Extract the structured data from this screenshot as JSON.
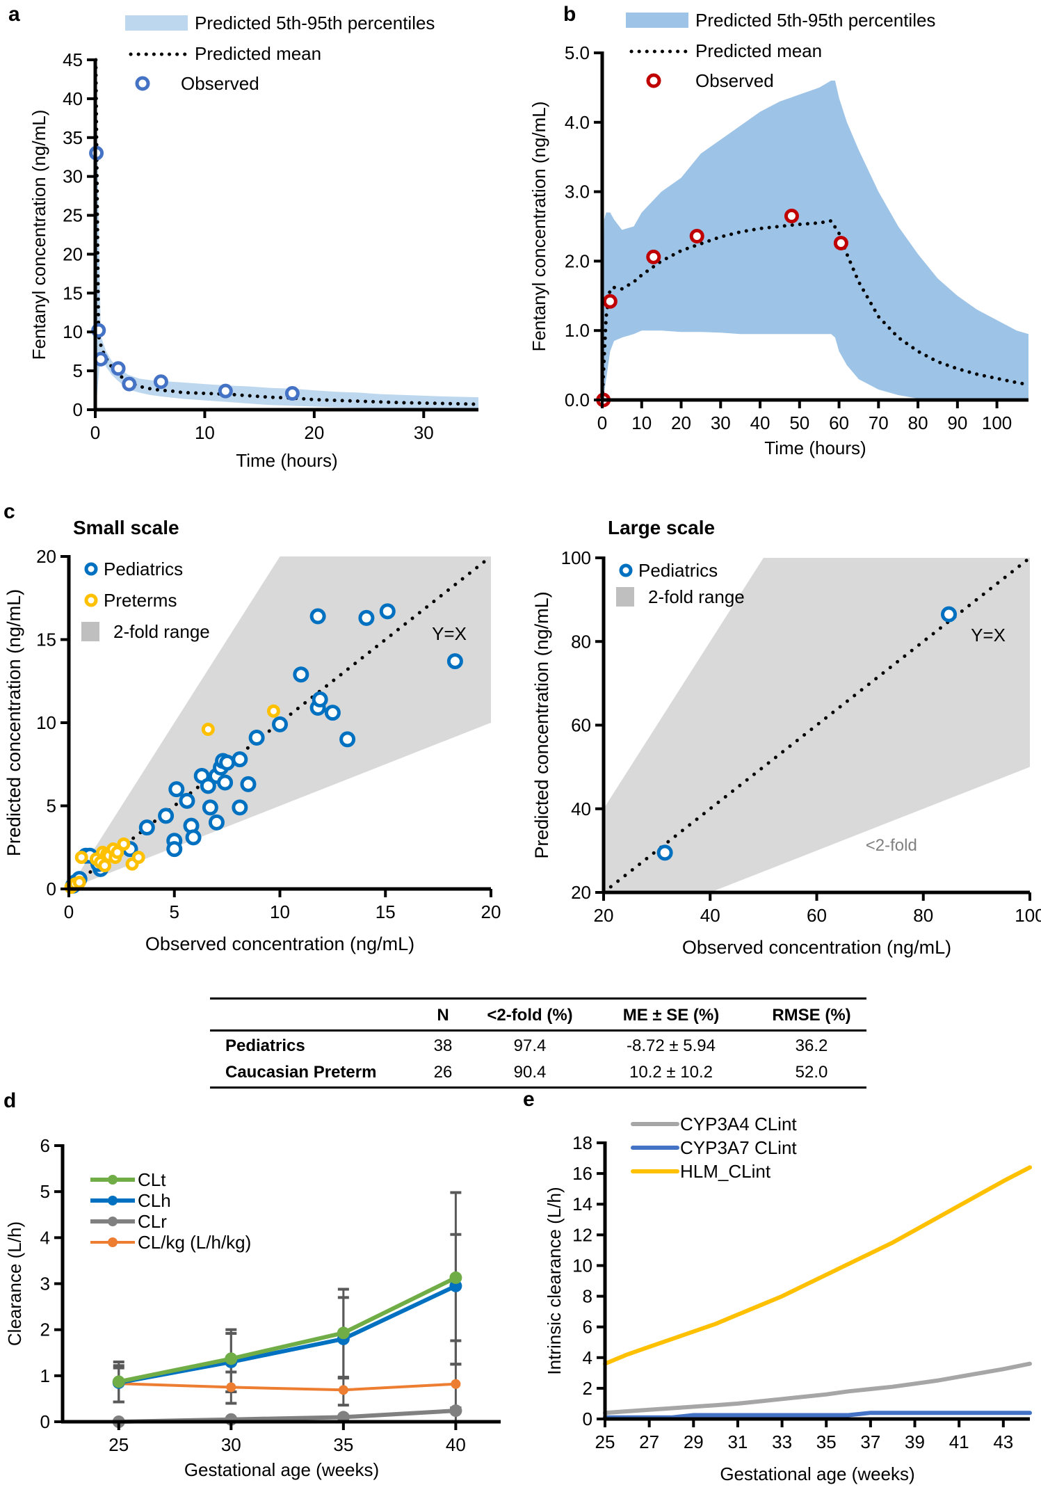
{
  "panel_labels": {
    "a": "a",
    "b": "b",
    "c": "c",
    "d": "d",
    "e": "e"
  },
  "chart_data": [
    {
      "id": "a",
      "type": "line",
      "title": "",
      "xlabel": "Time  (hours)",
      "ylabel": "Fentanyl concentration (ng/mL)",
      "xlim": [
        0,
        35
      ],
      "ylim": [
        0,
        45
      ],
      "xticks": [
        0,
        10,
        20,
        30
      ],
      "yticks": [
        0,
        5,
        10,
        15,
        20,
        25,
        30,
        35,
        40,
        45
      ],
      "legend": [
        "Predicted 5th-95th percentiles",
        "Predicted mean",
        "Observed"
      ],
      "legend_position": "top",
      "colors": {
        "band": "#bdd7ee",
        "mean": "#000000",
        "observed": "#4472c4"
      },
      "band": {
        "x": [
          0.05,
          0.5,
          1,
          1.5,
          2,
          3,
          4,
          5,
          6,
          8,
          10,
          12,
          14,
          16,
          18,
          20,
          22,
          24,
          26,
          28,
          30,
          32,
          35
        ],
        "lower": [
          0,
          7.5,
          5.5,
          4.5,
          3.8,
          2.6,
          2.2,
          1.9,
          1.7,
          1.4,
          1.2,
          1.0,
          0.8,
          0.6,
          0.5,
          0.4,
          0.3,
          0.25,
          0.2,
          0.15,
          0.1,
          0.1,
          0.05
        ],
        "upper": [
          45,
          9.5,
          7.5,
          6.3,
          5.5,
          4.5,
          4.0,
          3.8,
          3.7,
          3.5,
          3.3,
          3.1,
          3.0,
          2.8,
          2.7,
          2.5,
          2.3,
          2.2,
          2.0,
          1.9,
          1.8,
          1.7,
          1.6
        ]
      },
      "mean": {
        "x": [
          0.05,
          0.3,
          0.6,
          1,
          1.5,
          2,
          2.5,
          3,
          4,
          5,
          6,
          7,
          8,
          10,
          12,
          14,
          16,
          18,
          20,
          22,
          24,
          26,
          28,
          30,
          32,
          35
        ],
        "y": [
          45,
          9.5,
          7.8,
          6.6,
          5.5,
          4.7,
          4.1,
          3.6,
          3.0,
          2.7,
          2.5,
          2.4,
          2.2,
          2.1,
          2.0,
          1.8,
          1.6,
          1.5,
          1.3,
          1.2,
          1.1,
          1.0,
          0.9,
          0.85,
          0.8,
          0.7
        ]
      },
      "observed": {
        "x": [
          0.1,
          0.3,
          0.5,
          2.1,
          3.1,
          6.0,
          11.9,
          18.0
        ],
        "y": [
          33.0,
          10.2,
          6.5,
          5.3,
          3.3,
          3.6,
          2.4,
          2.1
        ]
      }
    },
    {
      "id": "b",
      "type": "line",
      "title": "",
      "xlabel": "Time  (hours)",
      "ylabel": "Fentanyl concentration (ng/mL)",
      "xlim": [
        0,
        108
      ],
      "ylim": [
        0,
        5.0
      ],
      "xticks": [
        0,
        10,
        20,
        30,
        40,
        50,
        60,
        70,
        80,
        90,
        100
      ],
      "yticks": [
        "0.0",
        "1.0",
        "2.0",
        "3.0",
        "4.0",
        "5.0"
      ],
      "legend": [
        "Predicted 5th-95th percentiles",
        "Predicted mean",
        "Observed"
      ],
      "legend_position": "top",
      "colors": {
        "band": "#9dc3e6",
        "mean": "#000000",
        "observed": "#c00000"
      },
      "band": {
        "x": [
          0,
          0.5,
          1,
          2,
          3,
          5,
          8,
          10,
          15,
          20,
          25,
          30,
          35,
          40,
          45,
          50,
          55,
          58,
          59,
          60,
          62,
          65,
          70,
          75,
          80,
          85,
          90,
          95,
          100,
          105,
          108
        ],
        "lower": [
          0,
          0.1,
          0.3,
          0.7,
          0.85,
          0.9,
          0.95,
          1.0,
          1.0,
          0.98,
          0.98,
          0.97,
          0.95,
          0.95,
          0.95,
          0.95,
          0.95,
          0.95,
          0.9,
          0.7,
          0.5,
          0.3,
          0.15,
          0.07,
          0.02,
          0,
          0,
          0,
          0,
          0,
          0
        ],
        "upper": [
          0,
          2.6,
          2.7,
          2.7,
          2.6,
          2.45,
          2.5,
          2.7,
          3.0,
          3.2,
          3.55,
          3.75,
          3.95,
          4.15,
          4.3,
          4.4,
          4.5,
          4.6,
          4.6,
          4.35,
          4.0,
          3.6,
          3.0,
          2.5,
          2.1,
          1.75,
          1.5,
          1.3,
          1.15,
          1.0,
          0.95
        ]
      },
      "mean": {
        "x": [
          0,
          0.5,
          1,
          2,
          3,
          5,
          8,
          10,
          15,
          20,
          25,
          30,
          35,
          40,
          45,
          50,
          55,
          58,
          60,
          62,
          65,
          70,
          75,
          80,
          85,
          90,
          95,
          100,
          105,
          108
        ],
        "y": [
          0,
          0.6,
          1.2,
          1.6,
          1.62,
          1.6,
          1.7,
          1.8,
          2.0,
          2.15,
          2.25,
          2.35,
          2.42,
          2.47,
          2.5,
          2.53,
          2.55,
          2.58,
          2.4,
          2.1,
          1.7,
          1.2,
          0.9,
          0.7,
          0.55,
          0.45,
          0.37,
          0.31,
          0.25,
          0.22
        ]
      },
      "observed": {
        "x": [
          0.3,
          2.0,
          13.0,
          24.0,
          48.0,
          60.5
        ],
        "y": [
          0.0,
          1.42,
          2.06,
          2.36,
          2.65,
          2.26
        ]
      }
    },
    {
      "id": "c-small",
      "type": "scatter",
      "title": "Small scale",
      "xlabel": "Observed concentration (ng/mL)",
      "ylabel": "Predicted concentration (ng/mL)",
      "xlim": [
        0,
        20
      ],
      "ylim": [
        0,
        20
      ],
      "xticks": [
        0,
        5,
        10,
        15,
        20
      ],
      "yticks": [
        0,
        5,
        10,
        15,
        20
      ],
      "legend": [
        "Pediatrics",
        "Preterms",
        "2-fold range"
      ],
      "legend_position": "top-left",
      "annotation": "Y=X",
      "colors": {
        "pediatrics": "#0070c0",
        "preterms": "#ffc000",
        "fold": "#d9d9d9"
      },
      "series": [
        {
          "name": "Pediatrics",
          "x": [
            0.2,
            0.3,
            0.5,
            0.8,
            1.0,
            1.5,
            1.4,
            2.9,
            3.7,
            4.6,
            5.0,
            5.0,
            5.1,
            5.6,
            5.8,
            5.9,
            6.3,
            6.6,
            6.7,
            7.0,
            7.0,
            7.2,
            7.3,
            7.4,
            7.5,
            8.1,
            8.1,
            8.5,
            8.9,
            10.0,
            11.0,
            11.8,
            11.9,
            12.5,
            13.2,
            11.8,
            14.1,
            15.1,
            18.3
          ],
          "y": [
            0.2,
            0.4,
            0.6,
            2.0,
            2.0,
            1.2,
            1.5,
            2.4,
            3.7,
            4.4,
            2.9,
            2.4,
            6.0,
            5.3,
            3.8,
            3.1,
            6.8,
            6.2,
            4.9,
            6.8,
            4.0,
            7.3,
            7.7,
            6.4,
            7.6,
            7.8,
            4.9,
            6.3,
            9.1,
            9.9,
            12.9,
            10.9,
            11.4,
            10.6,
            9.0,
            16.4,
            16.3,
            16.7,
            13.7
          ]
        },
        {
          "name": "Preterms",
          "x": [
            0.1,
            0.2,
            0.3,
            0.5,
            0.6,
            1.3,
            1.5,
            1.6,
            1.7,
            1.8,
            1.9,
            2.1,
            2.2,
            2.3,
            2.6,
            3.0,
            3.3,
            6.6,
            9.7
          ],
          "y": [
            0.1,
            0.2,
            0.3,
            0.4,
            1.9,
            1.8,
            1.6,
            2.2,
            1.4,
            2.1,
            2.0,
            2.4,
            1.9,
            2.2,
            2.7,
            1.5,
            1.9,
            9.6,
            10.7
          ]
        }
      ]
    },
    {
      "id": "c-large",
      "type": "scatter",
      "title": "Large scale",
      "xlabel": "Observed concentration (ng/mL)",
      "ylabel": "Predicted concentration (ng/mL)",
      "xlim": [
        20,
        100
      ],
      "ylim": [
        20,
        100
      ],
      "xticks": [
        20,
        40,
        60,
        80,
        100
      ],
      "yticks": [
        20,
        40,
        60,
        80,
        100
      ],
      "legend": [
        "Pediatrics",
        "2-fold range"
      ],
      "legend_position": "top-left",
      "annotation": "Y=X",
      "annotation2": "<2-fold",
      "colors": {
        "pediatrics": "#0070c0",
        "fold": "#d9d9d9",
        "annotation2": "#808080"
      },
      "series": [
        {
          "name": "Pediatrics",
          "x": [
            31.5,
            84.8
          ],
          "y": [
            29.5,
            86.5
          ]
        }
      ]
    },
    {
      "id": "d",
      "type": "line",
      "title": "",
      "xlabel": "Gestational age (weeks)",
      "ylabel": "Clearance (L/h)",
      "xlim": [
        22.5,
        42
      ],
      "ylim": [
        0,
        6
      ],
      "xticks": [
        25,
        30,
        35,
        40
      ],
      "yticks": [
        0,
        1,
        2,
        3,
        4,
        5,
        6
      ],
      "legend_position": "top-left",
      "categories": [
        25,
        30,
        35,
        40
      ],
      "series": [
        {
          "name": "CLt",
          "color": "#70ad47",
          "values": [
            0.87,
            1.37,
            1.93,
            3.13
          ],
          "err_low": [
            0.43,
            0.65,
            0.95,
            1.25
          ],
          "err_high": [
            1.3,
            2.0,
            2.88,
            4.98
          ]
        },
        {
          "name": "CLh",
          "color": "#0070c0",
          "values": [
            0.85,
            1.3,
            1.8,
            2.95
          ],
          "err_low": [
            0.43,
            0.65,
            0.95,
            1.25
          ],
          "err_high": [
            1.22,
            1.92,
            2.7,
            4.07
          ]
        },
        {
          "name": "CLr",
          "color": "#808080",
          "values": [
            0.0,
            0.05,
            0.1,
            0.24
          ],
          "err_low": [
            0.0,
            0.0,
            0.0,
            0.0
          ],
          "err_high": [
            0.0,
            0.0,
            0.0,
            0.3
          ]
        },
        {
          "name": "CL/kg (L/h/kg)",
          "color": "#ed7d31",
          "values": [
            0.83,
            0.75,
            0.69,
            0.82
          ],
          "err_low": [
            0.43,
            0.4,
            0.36,
            0.3
          ],
          "err_high": [
            1.17,
            1.08,
            0.97,
            1.76
          ]
        }
      ]
    },
    {
      "id": "e",
      "type": "line",
      "title": "",
      "xlabel": "Gestational age (weeks)",
      "ylabel": "Intrinsic clearance (L/h)",
      "xlim": [
        25,
        44.2
      ],
      "ylim": [
        0,
        18
      ],
      "xticks": [
        25,
        27,
        29,
        31,
        33,
        35,
        37,
        39,
        41,
        43
      ],
      "yticks": [
        0,
        2,
        4,
        6,
        8,
        10,
        12,
        14,
        16,
        18
      ],
      "legend_position": "top-left",
      "x": [
        25,
        26,
        27,
        28,
        29,
        30,
        31,
        32,
        33,
        34,
        35,
        36,
        37,
        38,
        39,
        40,
        41,
        42,
        43,
        44.2
      ],
      "series": [
        {
          "name": "CYP3A4 CLint",
          "color": "#a6a6a6",
          "values": [
            0.4,
            0.5,
            0.6,
            0.7,
            0.8,
            0.9,
            1.0,
            1.15,
            1.3,
            1.45,
            1.6,
            1.8,
            1.95,
            2.1,
            2.3,
            2.5,
            2.75,
            3.0,
            3.25,
            3.6
          ]
        },
        {
          "name": "CYP3A7 CLint",
          "color": "#4472c4",
          "values": [
            0.1,
            0.1,
            0.1,
            0.1,
            0.25,
            0.25,
            0.25,
            0.25,
            0.25,
            0.25,
            0.25,
            0.25,
            0.4,
            0.4,
            0.4,
            0.4,
            0.4,
            0.4,
            0.4,
            0.4
          ]
        },
        {
          "name": "HLM_CLint",
          "color": "#ffc000",
          "values": [
            3.6,
            4.2,
            4.7,
            5.2,
            5.7,
            6.2,
            6.8,
            7.4,
            8.0,
            8.7,
            9.4,
            10.1,
            10.8,
            11.5,
            12.3,
            13.1,
            13.9,
            14.7,
            15.5,
            16.4
          ]
        }
      ]
    }
  ],
  "table": {
    "headers": [
      "",
      "N",
      "<2-fold  (%)",
      "ME ± SE (%)",
      "RMSE (%)"
    ],
    "rows": [
      [
        "Pediatrics",
        "38",
        "97.4",
        "-8.72 ± 5.94",
        "36.2"
      ],
      [
        "Caucasian  Preterm",
        "26",
        "90.4",
        "10.2 ± 10.2",
        "52.0"
      ]
    ]
  }
}
